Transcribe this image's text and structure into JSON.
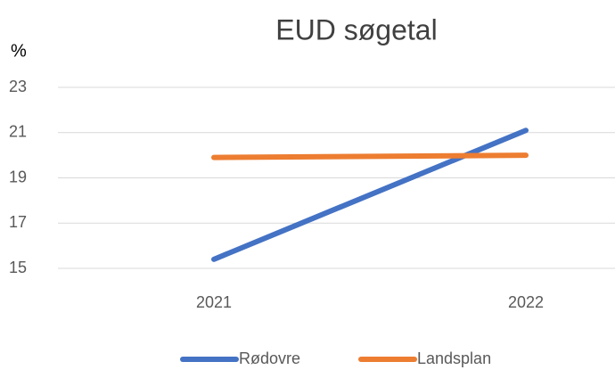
{
  "chart_data": {
    "type": "line",
    "title": "EUD søgetal",
    "y_label": "%",
    "categories": [
      "2021",
      "2022"
    ],
    "series": [
      {
        "name": "Rødovre",
        "color": "#4472c4",
        "values": [
          15.4,
          21.1
        ]
      },
      {
        "name": "Landsplan",
        "color": "#ed7d31",
        "values": [
          19.9,
          20.0
        ]
      }
    ],
    "ylim": [
      15,
      23
    ],
    "yticks": [
      15,
      17,
      19,
      21,
      23
    ],
    "grid": true,
    "legend": "bottom"
  }
}
